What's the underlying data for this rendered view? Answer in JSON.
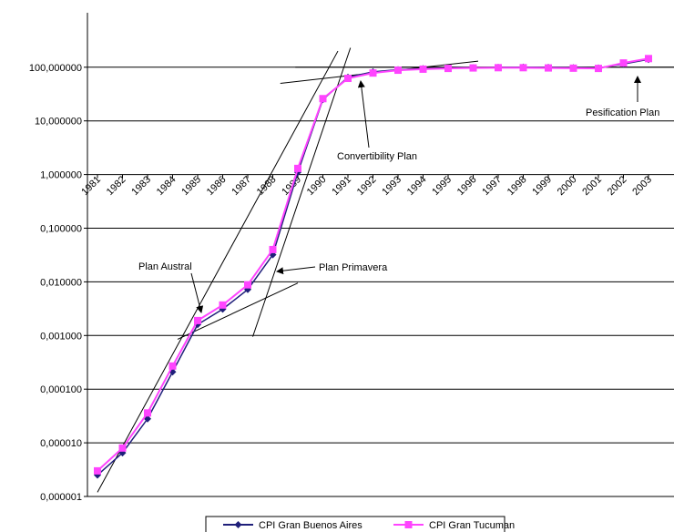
{
  "chart_data": {
    "type": "line",
    "y_scale": "log",
    "ylim": [
      1e-06,
      1000000000
    ],
    "y_tick_values": [
      1e-06,
      1e-05,
      0.0001,
      0.001,
      0.01,
      0.1,
      1,
      10,
      100
    ],
    "y_tick_labels": [
      "0,000001",
      "0,000010",
      "0,000100",
      "0,001000",
      "0,010000",
      "0,100000",
      "1,000000",
      "10,000000",
      "100,000000"
    ],
    "categories": [
      "1981",
      "1982",
      "1983",
      "1984",
      "1985",
      "1986",
      "1987",
      "1988",
      "1989",
      "1990",
      "1991",
      "1992",
      "1993",
      "1994",
      "1995",
      "1996",
      "1997",
      "1998",
      "1999",
      "2000",
      "2001",
      "2002",
      "2003"
    ],
    "series": [
      {
        "name": "CPI Gran Buenos Aires",
        "color": "#1f1f7a",
        "marker": "diamond",
        "values": [
          2.5e-06,
          6.5e-06,
          2.8e-05,
          0.00021,
          0.0016,
          0.0031,
          0.0072,
          0.032,
          1.1,
          25,
          65,
          82,
          90,
          94,
          97,
          98,
          99,
          100,
          99,
          98,
          97,
          115,
          140
        ]
      },
      {
        "name": "CPI Gran Tucuman",
        "color": "#ff44ff",
        "marker": "square",
        "values": [
          3e-06,
          8e-06,
          3.6e-05,
          0.00027,
          0.0019,
          0.0037,
          0.0088,
          0.04,
          1.3,
          26,
          62,
          78,
          88,
          92,
          95,
          97,
          98,
          98,
          97,
          96,
          95,
          120,
          145
        ]
      }
    ],
    "annotations": [
      {
        "text": "Plan Austral",
        "year": "1985"
      },
      {
        "text": "Plan Primavera",
        "year": "1988"
      },
      {
        "text": "Convertibility Plan",
        "year": "1991"
      },
      {
        "text": "Pesification Plan",
        "year": "2002"
      }
    ],
    "legend_position": "bottom",
    "grid": "horizontal"
  }
}
